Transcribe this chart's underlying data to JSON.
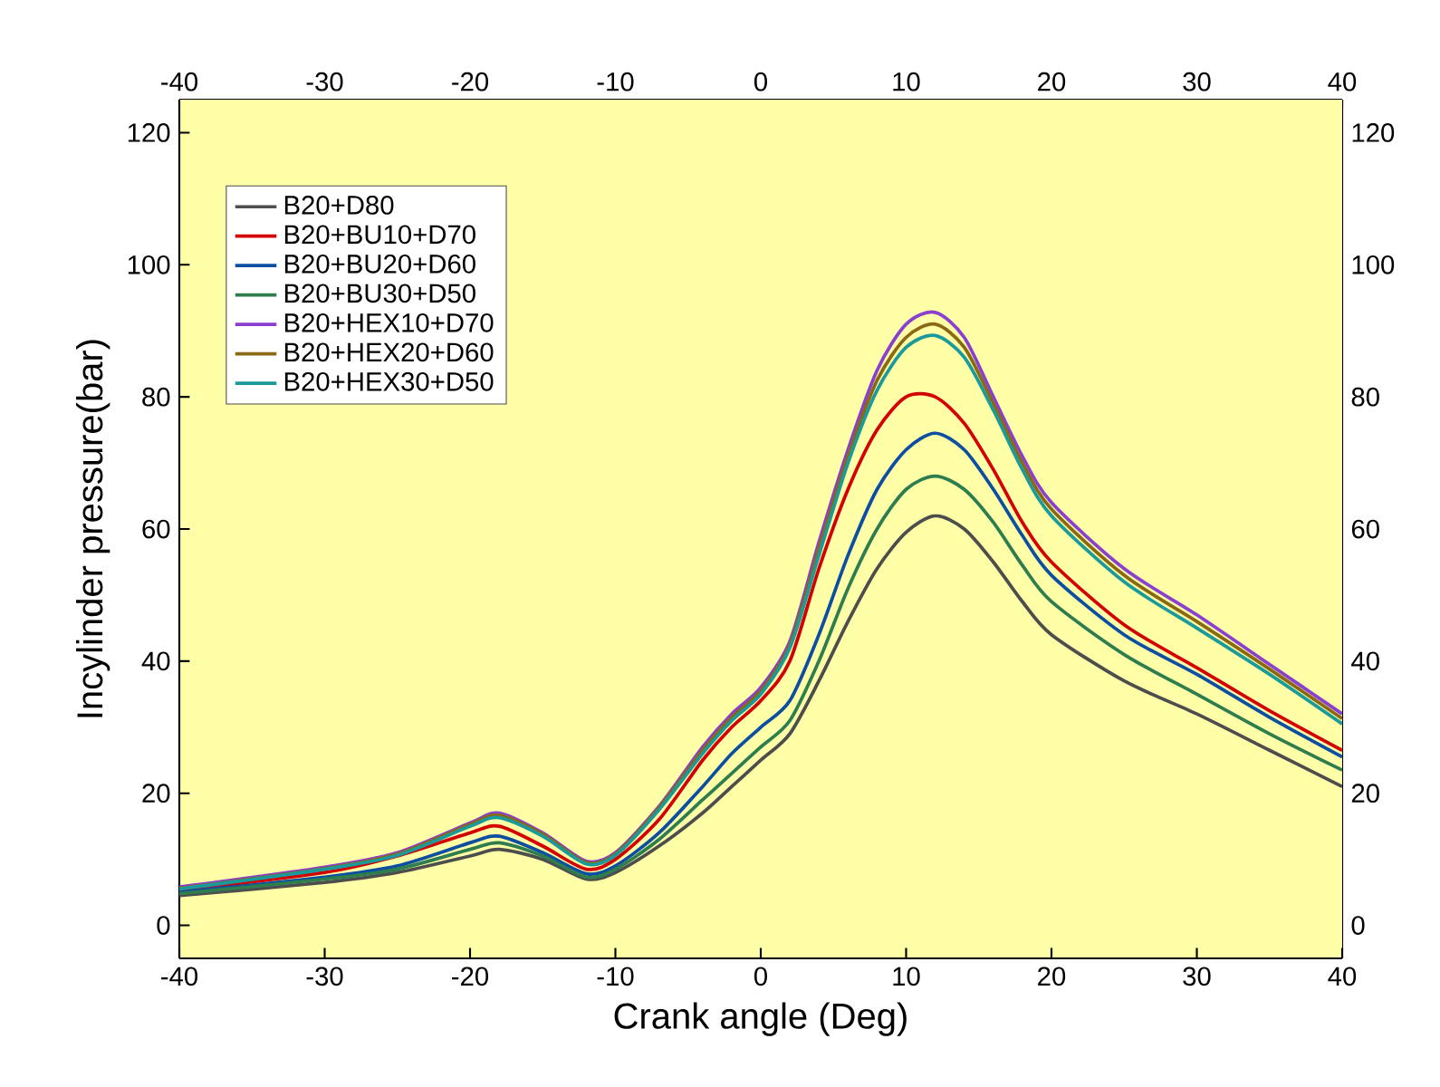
{
  "chart_data": {
    "type": "line",
    "xlabel": "Crank angle (Deg)",
    "ylabel": "Incylinder pressure(bar)",
    "x": [
      -40,
      -30,
      -25,
      -20,
      -18,
      -15,
      -12,
      -10,
      -7,
      -4,
      -2,
      0,
      2,
      4,
      6,
      8,
      10,
      12,
      14,
      16,
      18,
      20,
      25,
      30,
      35,
      40
    ],
    "series": [
      {
        "name": "B20+D80",
        "color": "#4d4d4d",
        "values": [
          4.5,
          6.5,
          8,
          10.5,
          11.5,
          10,
          7,
          8,
          12,
          17,
          21,
          25,
          29,
          37,
          46,
          54,
          59.5,
          62,
          60,
          55,
          49,
          44,
          37,
          32,
          26.5,
          21
        ]
      },
      {
        "name": "B20+BU10+D70",
        "color": "#d40000",
        "values": [
          5.3,
          8,
          10.5,
          14,
          15,
          12,
          8.5,
          10,
          16,
          25,
          30,
          34,
          40,
          54,
          66,
          75,
          80,
          80,
          76,
          69,
          61,
          55,
          45.5,
          39,
          32.5,
          26.5
        ]
      },
      {
        "name": "B20+BU20+D60",
        "color": "#0b4ea2",
        "values": [
          5,
          7.3,
          9,
          12.5,
          13.5,
          11,
          7.8,
          9,
          14,
          21,
          26,
          30,
          34,
          44,
          56,
          66,
          72,
          74.5,
          72,
          66,
          59,
          53,
          44,
          38,
          31.5,
          25.5
        ]
      },
      {
        "name": "B20+BU30+D50",
        "color": "#2e7d4f",
        "values": [
          4.8,
          7,
          8.5,
          11.5,
          12.5,
          10.5,
          7.3,
          8.5,
          13,
          19,
          23,
          27,
          31,
          40,
          51,
          60,
          66,
          68,
          66,
          61,
          54.5,
          49,
          41,
          35,
          29,
          23.5
        ]
      },
      {
        "name": "B20+HEX10+D70",
        "color": "#8b3fd0",
        "values": [
          5.8,
          8.8,
          11,
          15.5,
          17,
          14,
          9.7,
          11,
          18,
          27,
          32,
          36,
          43,
          58,
          72,
          84,
          91,
          92.8,
          89,
          80,
          71,
          64,
          54,
          47,
          39.5,
          32
        ]
      },
      {
        "name": "B20+HEX20+D60",
        "color": "#8b6914",
        "values": [
          5.6,
          8.6,
          10.8,
          15.3,
          16.7,
          13.8,
          9.5,
          10.8,
          17.8,
          26.5,
          31.5,
          35.5,
          42.5,
          57,
          71,
          82.5,
          89,
          91,
          87.5,
          79,
          70,
          63,
          53,
          46,
          38.8,
          31.3
        ]
      },
      {
        "name": "B20+HEX30+D50",
        "color": "#1a9a9a",
        "values": [
          5.5,
          8.5,
          10.6,
          15,
          16.3,
          13.5,
          9.3,
          10.6,
          17.5,
          26,
          31,
          35,
          42,
          56,
          70,
          81,
          87.5,
          89.3,
          86,
          78,
          69,
          62,
          52,
          45,
          38,
          30.5
        ]
      }
    ],
    "xlim": [
      -40,
      40
    ],
    "xticks": [
      -40,
      -30,
      -20,
      -10,
      0,
      10,
      20,
      30,
      40
    ],
    "x2lim": [
      -40,
      40
    ],
    "x2ticks": [
      -40,
      -30,
      -20,
      -10,
      0,
      10,
      20,
      30,
      40
    ],
    "ylim": [
      -5,
      125
    ],
    "yticks": [
      0,
      20,
      40,
      60,
      80,
      100,
      120
    ],
    "y2lim": [
      -5,
      125
    ],
    "y2ticks": [
      0,
      20,
      40,
      60,
      80,
      100,
      120
    ],
    "grid": false,
    "legend": "top left",
    "marker": "none",
    "line_style": "solid"
  }
}
